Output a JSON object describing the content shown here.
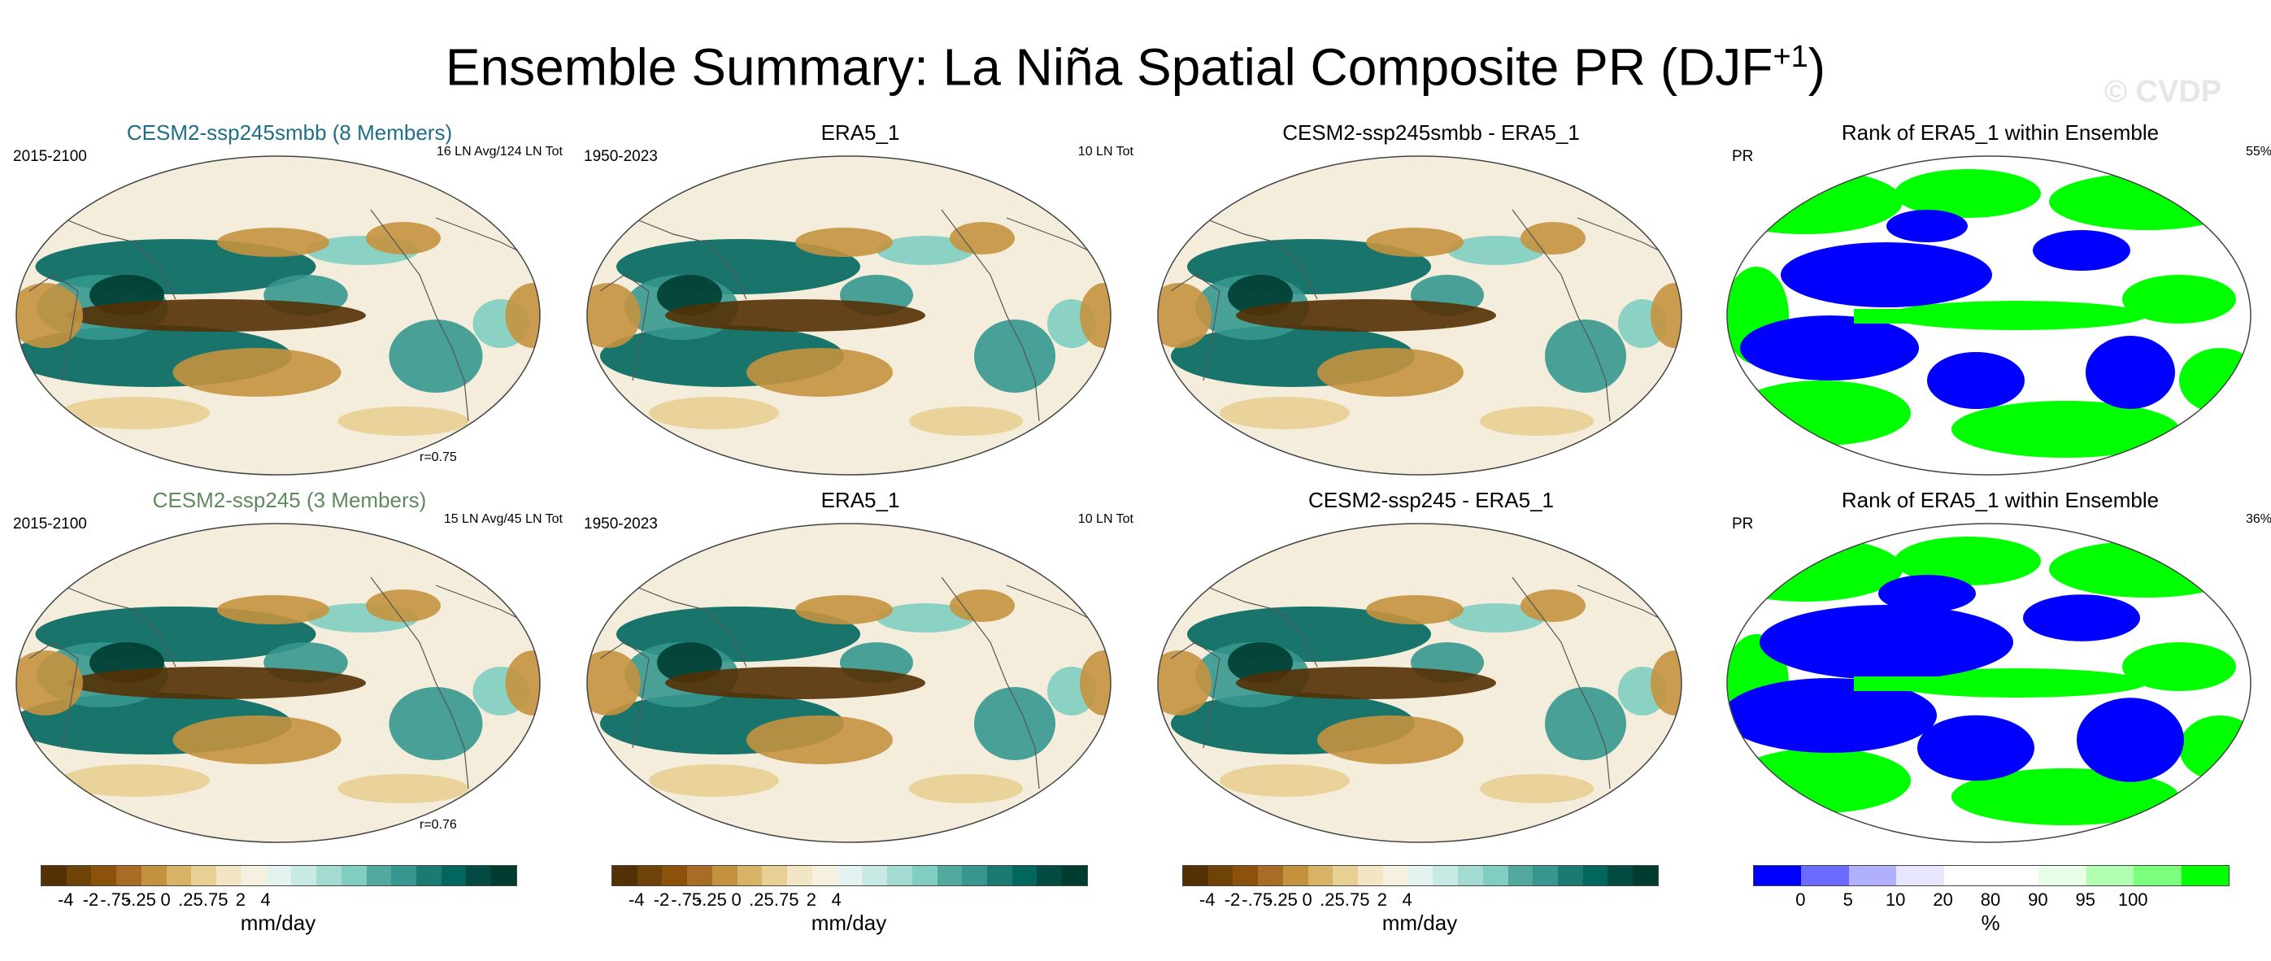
{
  "title": {
    "main": "Ensemble Summary: La Niña Spatial Composite PR (DJF",
    "sup": "+1",
    "close": ")"
  },
  "watermark": "© CVDP",
  "panels": {
    "r1c1": {
      "title": "CESM2-ssp245smbb (8 Members)",
      "left": "2015-2100",
      "right": "16 LN Avg/124 LN Tot",
      "r": "r=0.75"
    },
    "r1c2": {
      "title": "ERA5_1",
      "left": "1950-2023",
      "right": "10 LN Tot"
    },
    "r1c3": {
      "title": "CESM2-ssp245smbb - ERA5_1"
    },
    "r1c4": {
      "title": "Rank of ERA5_1 within Ensemble",
      "left": "PR",
      "right": "55%"
    },
    "r2c1": {
      "title": "CESM2-ssp245 (3 Members)",
      "left": "2015-2100",
      "right": "15 LN Avg/45 LN Tot",
      "r": "r=0.76"
    },
    "r2c2": {
      "title": "ERA5_1",
      "left": "1950-2023",
      "right": "10 LN Tot"
    },
    "r2c3": {
      "title": "CESM2-ssp245 - ERA5_1"
    },
    "r2c4": {
      "title": "Rank of ERA5_1 within Ensemble",
      "left": "PR",
      "right": "36%"
    }
  },
  "colorbars": {
    "precip": {
      "unit": "mm/day",
      "ticks": [
        "-4",
        "-2",
        "-.75",
        "-.25",
        "0",
        ".25",
        ".75",
        "2",
        "4"
      ],
      "colors": [
        "#543005",
        "#6f4208",
        "#8c510a",
        "#a86c24",
        "#c4923f",
        "#d8b365",
        "#e8cf94",
        "#f2e6c4",
        "#f6f0e0",
        "#e4f2f0",
        "#c7eae5",
        "#a3dbd2",
        "#80cdc1",
        "#52aa9f",
        "#35978f",
        "#1b7a72",
        "#01665e",
        "#024a42",
        "#003c30"
      ]
    },
    "rank": {
      "unit": "%",
      "ticks": [
        "0",
        "5",
        "10",
        "20",
        "80",
        "90",
        "95",
        "100"
      ],
      "colors": [
        "#0000ff",
        "#6b6bff",
        "#b0b0ff",
        "#e6e6ff",
        "#ffffff",
        "#ffffff",
        "#e6ffe6",
        "#b0ffb0",
        "#7cff7c",
        "#00ff00"
      ]
    }
  }
}
